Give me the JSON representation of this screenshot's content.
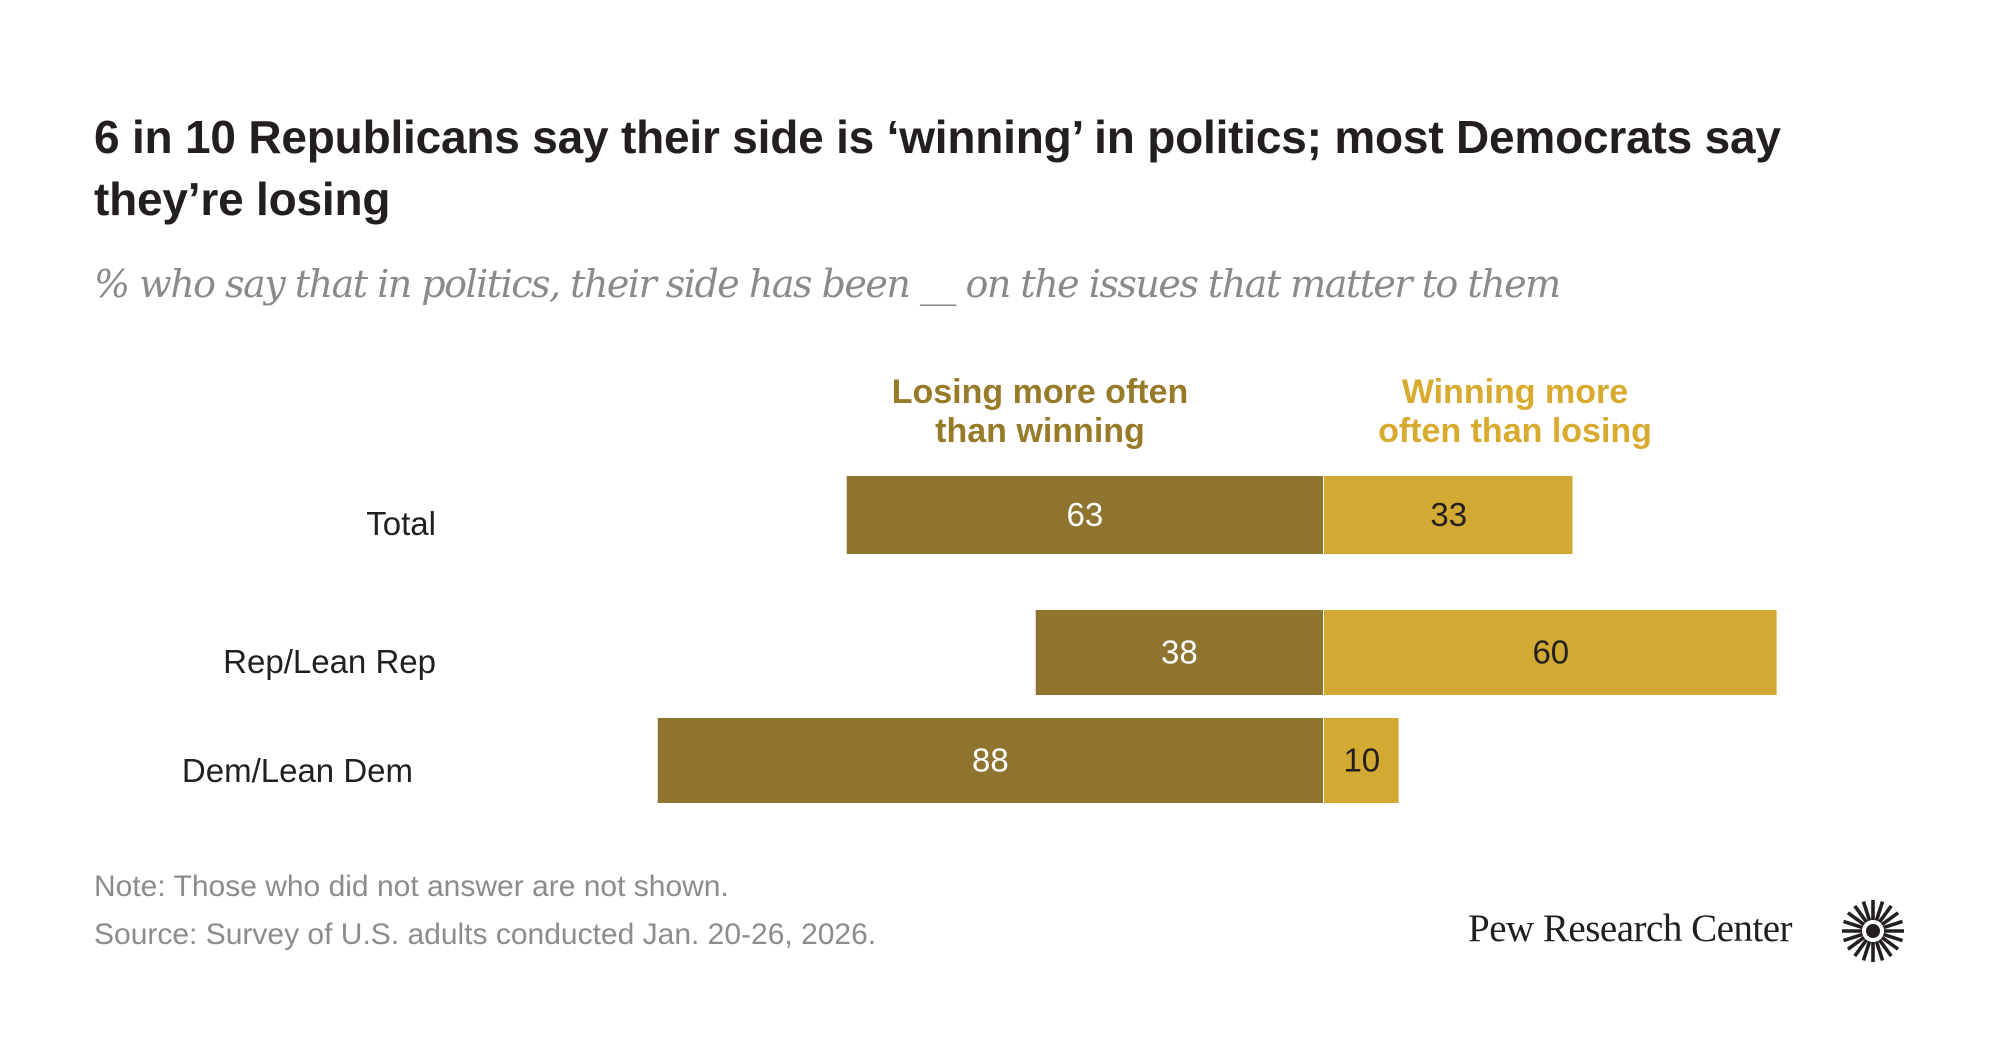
{
  "title": "6 in 10 Republicans say their side is ‘winning’ in politics; most Democrats say they’re losing",
  "subtitle": "% who say that in politics, their side has been __ on the issues that matter to them",
  "colors": {
    "losing": "#8e742f",
    "winning": "#d2a932",
    "losing_header": "#987b29",
    "winning_header": "#d8aa2d"
  },
  "chart_data": {
    "type": "bar",
    "orientation": "horizontal-diverging",
    "title": "6 in 10 Republicans say their side is ‘winning’ in politics; most Democrats say they’re losing",
    "subtitle": "% who say that in politics, their side has been __ on the issues that matter to them",
    "categories": [
      "Total",
      "Rep/Lean Rep",
      "Dem/Lean Dem"
    ],
    "series": [
      {
        "name": "Losing more often than winning",
        "direction": "left",
        "values": [
          63,
          38,
          88
        ]
      },
      {
        "name": "Winning more often than losing",
        "direction": "right",
        "values": [
          33,
          60,
          10
        ]
      }
    ],
    "xlabel": "",
    "ylabel": "",
    "grid": false,
    "legend": "top (column headers above bars)"
  },
  "headers": {
    "losing": "Losing more often than winning",
    "winning": "Winning more often than losing",
    "losing_lines": [
      "Losing more often",
      "than winning"
    ],
    "winning_lines": [
      "Winning more",
      "often than losing"
    ]
  },
  "rows": [
    {
      "label": "Total"
    },
    {
      "label": "Rep/Lean Rep"
    },
    {
      "label": "Dem/Lean Dem"
    }
  ],
  "footer": {
    "note": "Note: Those who did not answer are not shown.",
    "source": "Source: Survey of U.S. adults conducted Jan. 20-26, 2026.",
    "logo_text": "Pew Research Center",
    "logo_icon": "pew-starburst-icon"
  }
}
